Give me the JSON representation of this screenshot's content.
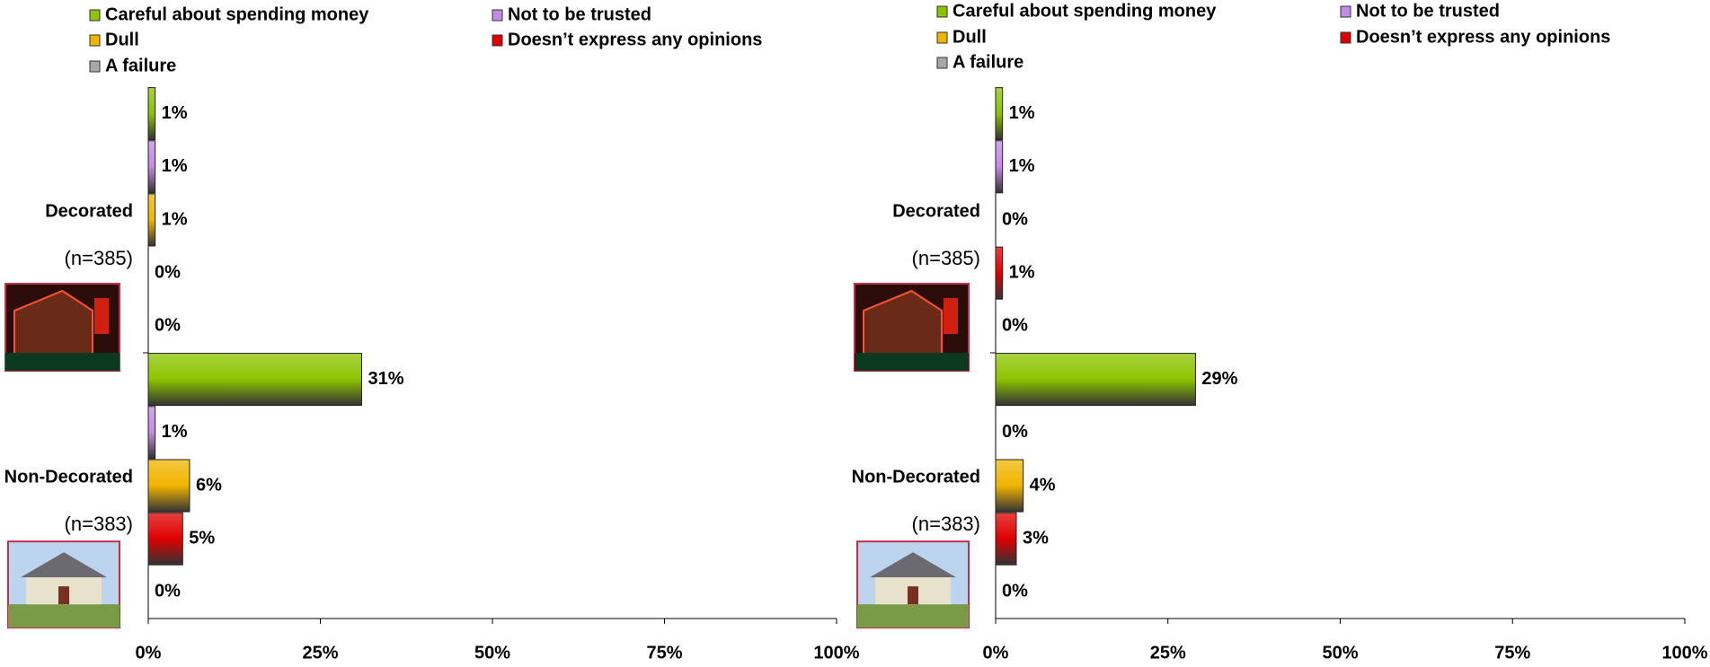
{
  "chart_data": [
    {
      "type": "bar",
      "orientation": "horizontal",
      "categories": [
        "Decorated",
        "Non-Decorated"
      ],
      "category_notes": [
        "(n=385)",
        "(n=383)"
      ],
      "series": [
        {
          "name": "Careful about spending money",
          "color": "#8cc400",
          "values": [
            1,
            31
          ],
          "value_labels": [
            "1%",
            "31%"
          ]
        },
        {
          "name": "Not to be trusted",
          "color": "#c58ae6",
          "values": [
            1,
            1
          ],
          "value_labels": [
            "1%",
            "1%"
          ]
        },
        {
          "name": "Dull",
          "color": "#f2b400",
          "values": [
            1,
            6
          ],
          "value_labels": [
            "1%",
            "6%"
          ]
        },
        {
          "name": "Doesn’t express any opinions",
          "color": "#e00000",
          "values": [
            0,
            5
          ],
          "value_labels": [
            "0%",
            "5%"
          ]
        },
        {
          "name": "A failure",
          "color": "#a8a8a8",
          "values": [
            0,
            0
          ],
          "value_labels": [
            "0%",
            "0%"
          ]
        }
      ],
      "xlim": [
        0,
        100
      ],
      "xticks": [
        {
          "value": 0,
          "label": "0%"
        },
        {
          "value": 25,
          "label": "25%"
        },
        {
          "value": 50,
          "label": "50%"
        },
        {
          "value": 75,
          "label": "75%"
        },
        {
          "value": 100,
          "label": "100%"
        }
      ],
      "legend": "top"
    },
    {
      "type": "bar",
      "orientation": "horizontal",
      "categories": [
        "Decorated",
        "Non-Decorated"
      ],
      "category_notes": [
        "(n=385)",
        "(n=383)"
      ],
      "series": [
        {
          "name": "Careful about spending money",
          "color": "#8cc400",
          "values": [
            1,
            29
          ],
          "value_labels": [
            "1%",
            "29%"
          ]
        },
        {
          "name": "Not to be trusted",
          "color": "#c58ae6",
          "values": [
            1,
            0
          ],
          "value_labels": [
            "1%",
            "0%"
          ]
        },
        {
          "name": "Dull",
          "color": "#f2b400",
          "values": [
            0,
            4
          ],
          "value_labels": [
            "0%",
            "4%"
          ]
        },
        {
          "name": "Doesn’t express any opinions",
          "color": "#e00000",
          "values": [
            1,
            3
          ],
          "value_labels": [
            "1%",
            "3%"
          ]
        },
        {
          "name": "A failure",
          "color": "#a8a8a8",
          "values": [
            0,
            0
          ],
          "value_labels": [
            "0%",
            "0%"
          ]
        }
      ],
      "xlim": [
        0,
        100
      ],
      "xticks": [
        {
          "value": 0,
          "label": "0%"
        },
        {
          "value": 25,
          "label": "25%"
        },
        {
          "value": 50,
          "label": "50%"
        },
        {
          "value": 75,
          "label": "75%"
        },
        {
          "value": 100,
          "label": "100%"
        }
      ],
      "legend": "top"
    }
  ]
}
